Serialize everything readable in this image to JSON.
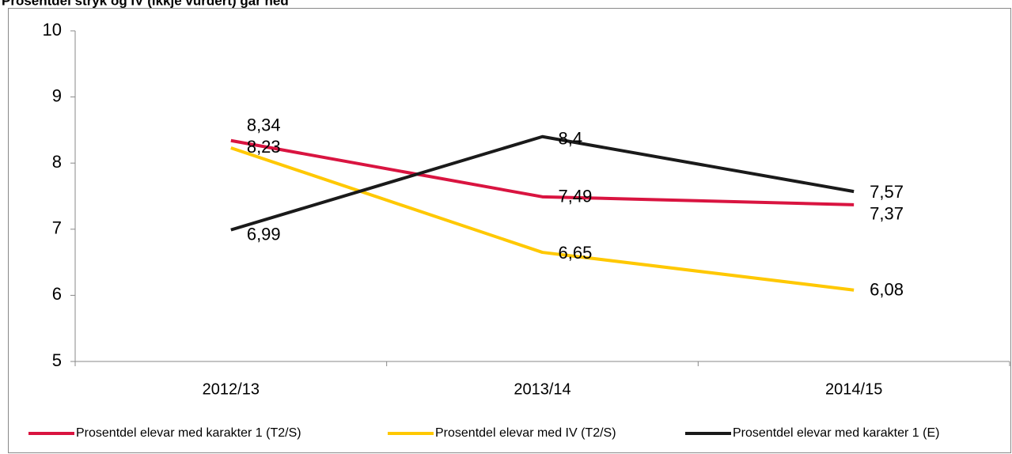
{
  "chart_data": {
    "type": "line",
    "title": "Prosentdel stryk og IV (ikkje vurdert) går ned",
    "categories": [
      "2012/13",
      "2013/14",
      "2014/15"
    ],
    "series": [
      {
        "name": "Prosentdel elevar med karakter 1 (T2/S)",
        "color": "#d91440",
        "values": [
          8.34,
          7.49,
          7.37
        ],
        "value_labels": [
          "8,34",
          "7,49",
          "7,37"
        ]
      },
      {
        "name": "Prosentdel elevar med IV (T2/S)",
        "color": "#ffc800",
        "values": [
          8.23,
          6.65,
          6.08
        ],
        "value_labels": [
          "8,23",
          "6,65",
          "6,08"
        ]
      },
      {
        "name": "Prosentdel elevar med karakter 1 (E)",
        "color": "#1a1a1a",
        "values": [
          6.99,
          8.4,
          7.57
        ],
        "value_labels": [
          "6,99",
          "8,4",
          "7,57"
        ]
      }
    ],
    "ylim": [
      5,
      10
    ],
    "yticks": [
      5,
      6,
      7,
      8,
      9,
      10
    ],
    "legend": "bottom"
  }
}
